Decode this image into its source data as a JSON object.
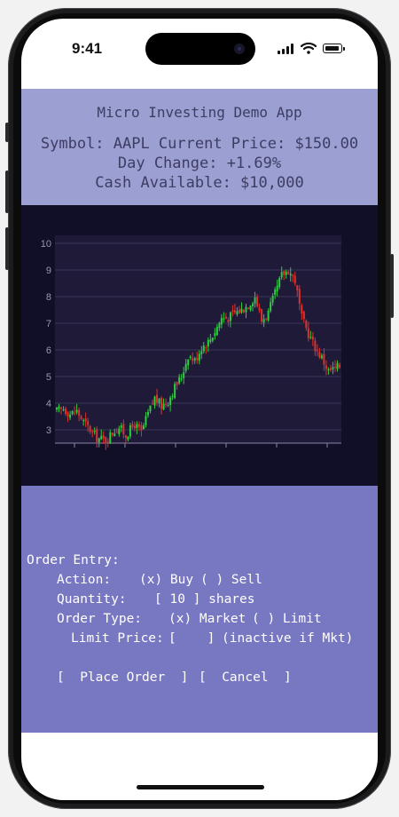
{
  "status_bar": {
    "time": "9:41",
    "icons": [
      "signal-icon",
      "wifi-icon",
      "battery-icon"
    ]
  },
  "header": {
    "title": "Micro Investing Demo App",
    "symbol_line": "Symbol: AAPL Current Price: $150.00",
    "change_line": "Day Change: +1.69%",
    "cash_line": "Cash Available: $10,000"
  },
  "order_entry": {
    "heading": "Order Entry:",
    "action_label": "Action:",
    "buy_option": "(x) Buy",
    "sell_option": "( ) Sell",
    "quantity_label": "Quantity:",
    "quantity_value": "[ 10 ] shares",
    "order_type_label": "Order Type:",
    "market_option": "(x) Market",
    "limit_option": "( ) Limit",
    "limit_price_label": "Limit Price:",
    "limit_price_value": "[    ]",
    "limit_note": "(inactive if Mkt)",
    "place_order_button": "[  Place Order  ]",
    "cancel_button": "[  Cancel  ]"
  },
  "colors": {
    "header_bg": "#9c9fd2",
    "chart_bg": "#110e27",
    "order_bg": "#7877c2",
    "up_candle": "#2ecc40",
    "down_candle": "#e0302a"
  },
  "chart_data": {
    "type": "candlestick",
    "y_ticks": [
      "3",
      "4",
      "5",
      "6",
      "7",
      "8",
      "9",
      "10"
    ],
    "ylim": [
      2.5,
      10.3
    ],
    "grid": true,
    "close_path": [
      [
        0,
        3.7
      ],
      [
        3,
        3.8
      ],
      [
        6,
        3.6
      ],
      [
        9,
        3.7
      ],
      [
        12,
        3.3
      ],
      [
        15,
        3.0
      ],
      [
        18,
        2.7
      ],
      [
        22,
        2.6
      ],
      [
        25,
        2.9
      ],
      [
        28,
        3.1
      ],
      [
        31,
        2.8
      ],
      [
        35,
        3.2
      ],
      [
        38,
        2.9
      ],
      [
        41,
        3.6
      ],
      [
        44,
        4.2
      ],
      [
        47,
        3.9
      ],
      [
        50,
        4.1
      ],
      [
        53,
        4.6
      ],
      [
        56,
        5.0
      ],
      [
        59,
        5.8
      ],
      [
        62,
        5.6
      ],
      [
        65,
        6.1
      ],
      [
        68,
        6.3
      ],
      [
        71,
        6.7
      ],
      [
        74,
        7.2
      ],
      [
        77,
        7.2
      ],
      [
        80,
        7.4
      ],
      [
        83,
        7.5
      ],
      [
        86,
        7.7
      ],
      [
        89,
        8.0
      ],
      [
        92,
        7.1
      ],
      [
        95,
        7.4
      ],
      [
        98,
        8.1
      ],
      [
        101,
        8.8
      ],
      [
        104,
        9.0
      ],
      [
        107,
        8.6
      ],
      [
        110,
        7.2
      ],
      [
        113,
        6.6
      ],
      [
        116,
        6.1
      ],
      [
        119,
        5.7
      ],
      [
        122,
        5.2
      ],
      [
        125,
        5.3
      ],
      [
        127,
        5.4
      ]
    ]
  }
}
